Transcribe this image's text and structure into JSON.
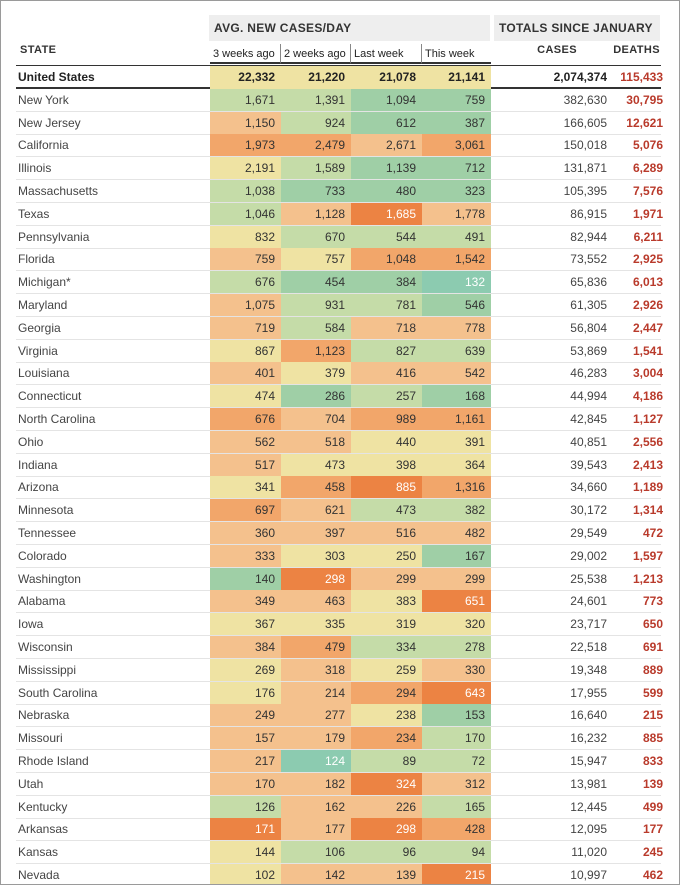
{
  "headers": {
    "state": "STATE",
    "avg_group": "AVG. NEW CASES/DAY",
    "totals_group": "TOTALS SINCE JANUARY",
    "periods": [
      "3 weeks ago",
      "2 weeks ago",
      "Last week",
      "This week"
    ],
    "cases": "CASES",
    "deaths": "DEATHS"
  },
  "colors": {
    "bright_orange": "#ec8343",
    "orange": "#f2a66a",
    "light_orange": "#f4c18d",
    "pale_yellow": "#efe3a3",
    "light_green": "#c5dca8",
    "green": "#9fcfa6",
    "teal": "#8ccbb0",
    "deaths_red": "#b93a2b"
  },
  "chart_data": {
    "type": "table",
    "columns": [
      "State",
      "3 weeks ago",
      "2 weeks ago",
      "Last week",
      "This week",
      "Cases",
      "Deaths"
    ],
    "rows": [
      {
        "state": "United States",
        "avg": [
          "22,332",
          "21,220",
          "21,078",
          "21,141"
        ],
        "heat": [
          "pale_yellow",
          "pale_yellow",
          "pale_yellow",
          "pale_yellow"
        ],
        "cases": "2,074,374",
        "deaths": "115,433"
      },
      {
        "state": "New York",
        "avg": [
          "1,671",
          "1,391",
          "1,094",
          "759"
        ],
        "heat": [
          "light_green",
          "light_green",
          "green",
          "green"
        ],
        "cases": "382,630",
        "deaths": "30,795"
      },
      {
        "state": "New Jersey",
        "avg": [
          "1,150",
          "924",
          "612",
          "387"
        ],
        "heat": [
          "light_orange",
          "light_green",
          "green",
          "green"
        ],
        "cases": "166,605",
        "deaths": "12,621"
      },
      {
        "state": "California",
        "avg": [
          "1,973",
          "2,479",
          "2,671",
          "3,061"
        ],
        "heat": [
          "orange",
          "orange",
          "light_orange",
          "orange"
        ],
        "cases": "150,018",
        "deaths": "5,076"
      },
      {
        "state": "Illinois",
        "avg": [
          "2,191",
          "1,589",
          "1,139",
          "712"
        ],
        "heat": [
          "pale_yellow",
          "light_green",
          "green",
          "green"
        ],
        "cases": "131,871",
        "deaths": "6,289"
      },
      {
        "state": "Massachusetts",
        "avg": [
          "1,038",
          "733",
          "480",
          "323"
        ],
        "heat": [
          "light_green",
          "green",
          "green",
          "green"
        ],
        "cases": "105,395",
        "deaths": "7,576"
      },
      {
        "state": "Texas",
        "avg": [
          "1,046",
          "1,128",
          "1,685",
          "1,778"
        ],
        "heat": [
          "light_green",
          "light_orange",
          "bright_orange",
          "light_orange"
        ],
        "cases": "86,915",
        "deaths": "1,971"
      },
      {
        "state": "Pennsylvania",
        "avg": [
          "832",
          "670",
          "544",
          "491"
        ],
        "heat": [
          "pale_yellow",
          "light_green",
          "light_green",
          "light_green"
        ],
        "cases": "82,944",
        "deaths": "6,211"
      },
      {
        "state": "Florida",
        "avg": [
          "759",
          "757",
          "1,048",
          "1,542"
        ],
        "heat": [
          "light_orange",
          "pale_yellow",
          "orange",
          "orange"
        ],
        "cases": "73,552",
        "deaths": "2,925"
      },
      {
        "state": "Michigan*",
        "avg": [
          "676",
          "454",
          "384",
          "132"
        ],
        "heat": [
          "light_green",
          "green",
          "green",
          "teal"
        ],
        "cases": "65,836",
        "deaths": "6,013"
      },
      {
        "state": "Maryland",
        "avg": [
          "1,075",
          "931",
          "781",
          "546"
        ],
        "heat": [
          "light_orange",
          "light_green",
          "light_green",
          "green"
        ],
        "cases": "61,305",
        "deaths": "2,926"
      },
      {
        "state": "Georgia",
        "avg": [
          "719",
          "584",
          "718",
          "778"
        ],
        "heat": [
          "light_orange",
          "light_green",
          "light_orange",
          "light_orange"
        ],
        "cases": "56,804",
        "deaths": "2,447"
      },
      {
        "state": "Virginia",
        "avg": [
          "867",
          "1,123",
          "827",
          "639"
        ],
        "heat": [
          "pale_yellow",
          "orange",
          "light_green",
          "light_green"
        ],
        "cases": "53,869",
        "deaths": "1,541"
      },
      {
        "state": "Louisiana",
        "avg": [
          "401",
          "379",
          "416",
          "542"
        ],
        "heat": [
          "light_orange",
          "pale_yellow",
          "light_orange",
          "light_orange"
        ],
        "cases": "46,283",
        "deaths": "3,004"
      },
      {
        "state": "Connecticut",
        "avg": [
          "474",
          "286",
          "257",
          "168"
        ],
        "heat": [
          "pale_yellow",
          "green",
          "light_green",
          "green"
        ],
        "cases": "44,994",
        "deaths": "4,186"
      },
      {
        "state": "North Carolina",
        "avg": [
          "676",
          "704",
          "989",
          "1,161"
        ],
        "heat": [
          "orange",
          "light_orange",
          "orange",
          "orange"
        ],
        "cases": "42,845",
        "deaths": "1,127"
      },
      {
        "state": "Ohio",
        "avg": [
          "562",
          "518",
          "440",
          "391"
        ],
        "heat": [
          "light_orange",
          "light_orange",
          "pale_yellow",
          "pale_yellow"
        ],
        "cases": "40,851",
        "deaths": "2,556"
      },
      {
        "state": "Indiana",
        "avg": [
          "517",
          "473",
          "398",
          "364"
        ],
        "heat": [
          "light_orange",
          "pale_yellow",
          "pale_yellow",
          "pale_yellow"
        ],
        "cases": "39,543",
        "deaths": "2,413"
      },
      {
        "state": "Arizona",
        "avg": [
          "341",
          "458",
          "885",
          "1,316"
        ],
        "heat": [
          "pale_yellow",
          "orange",
          "bright_orange",
          "orange"
        ],
        "cases": "34,660",
        "deaths": "1,189"
      },
      {
        "state": "Minnesota",
        "avg": [
          "697",
          "621",
          "473",
          "382"
        ],
        "heat": [
          "orange",
          "light_orange",
          "light_green",
          "light_green"
        ],
        "cases": "30,172",
        "deaths": "1,314"
      },
      {
        "state": "Tennessee",
        "avg": [
          "360",
          "397",
          "516",
          "482"
        ],
        "heat": [
          "light_orange",
          "light_orange",
          "light_orange",
          "light_orange"
        ],
        "cases": "29,549",
        "deaths": "472"
      },
      {
        "state": "Colorado",
        "avg": [
          "333",
          "303",
          "250",
          "167"
        ],
        "heat": [
          "light_orange",
          "pale_yellow",
          "pale_yellow",
          "green"
        ],
        "cases": "29,002",
        "deaths": "1,597"
      },
      {
        "state": "Washington",
        "avg": [
          "140",
          "298",
          "299",
          "299"
        ],
        "heat": [
          "green",
          "bright_orange",
          "light_orange",
          "light_orange"
        ],
        "cases": "25,538",
        "deaths": "1,213"
      },
      {
        "state": "Alabama",
        "avg": [
          "349",
          "463",
          "383",
          "651"
        ],
        "heat": [
          "light_orange",
          "light_orange",
          "pale_yellow",
          "bright_orange"
        ],
        "cases": "24,601",
        "deaths": "773"
      },
      {
        "state": "Iowa",
        "avg": [
          "367",
          "335",
          "319",
          "320"
        ],
        "heat": [
          "pale_yellow",
          "pale_yellow",
          "pale_yellow",
          "pale_yellow"
        ],
        "cases": "23,717",
        "deaths": "650"
      },
      {
        "state": "Wisconsin",
        "avg": [
          "384",
          "479",
          "334",
          "278"
        ],
        "heat": [
          "light_orange",
          "orange",
          "light_green",
          "light_green"
        ],
        "cases": "22,518",
        "deaths": "691"
      },
      {
        "state": "Mississippi",
        "avg": [
          "269",
          "318",
          "259",
          "330"
        ],
        "heat": [
          "pale_yellow",
          "light_orange",
          "pale_yellow",
          "light_orange"
        ],
        "cases": "19,348",
        "deaths": "889"
      },
      {
        "state": "South Carolina",
        "avg": [
          "176",
          "214",
          "294",
          "643"
        ],
        "heat": [
          "pale_yellow",
          "light_orange",
          "orange",
          "bright_orange"
        ],
        "cases": "17,955",
        "deaths": "599"
      },
      {
        "state": "Nebraska",
        "avg": [
          "249",
          "277",
          "238",
          "153"
        ],
        "heat": [
          "light_orange",
          "light_orange",
          "pale_yellow",
          "green"
        ],
        "cases": "16,640",
        "deaths": "215"
      },
      {
        "state": "Missouri",
        "avg": [
          "157",
          "179",
          "234",
          "170"
        ],
        "heat": [
          "light_orange",
          "light_orange",
          "orange",
          "light_green"
        ],
        "cases": "16,232",
        "deaths": "885"
      },
      {
        "state": "Rhode Island",
        "avg": [
          "217",
          "124",
          "89",
          "72"
        ],
        "heat": [
          "light_orange",
          "teal",
          "light_green",
          "light_green"
        ],
        "cases": "15,947",
        "deaths": "833"
      },
      {
        "state": "Utah",
        "avg": [
          "170",
          "182",
          "324",
          "312"
        ],
        "heat": [
          "light_orange",
          "light_orange",
          "bright_orange",
          "light_orange"
        ],
        "cases": "13,981",
        "deaths": "139"
      },
      {
        "state": "Kentucky",
        "avg": [
          "126",
          "162",
          "226",
          "165"
        ],
        "heat": [
          "light_green",
          "light_orange",
          "light_orange",
          "light_green"
        ],
        "cases": "12,445",
        "deaths": "499"
      },
      {
        "state": "Arkansas",
        "avg": [
          "171",
          "177",
          "298",
          "428"
        ],
        "heat": [
          "bright_orange",
          "light_orange",
          "bright_orange",
          "orange"
        ],
        "cases": "12,095",
        "deaths": "177"
      },
      {
        "state": "Kansas",
        "avg": [
          "144",
          "106",
          "96",
          "94"
        ],
        "heat": [
          "pale_yellow",
          "light_green",
          "light_green",
          "light_green"
        ],
        "cases": "11,020",
        "deaths": "245"
      },
      {
        "state": "Nevada",
        "avg": [
          "102",
          "142",
          "139",
          "215"
        ],
        "heat": [
          "pale_yellow",
          "light_orange",
          "light_orange",
          "bright_orange"
        ],
        "cases": "10,997",
        "deaths": "462"
      }
    ]
  }
}
